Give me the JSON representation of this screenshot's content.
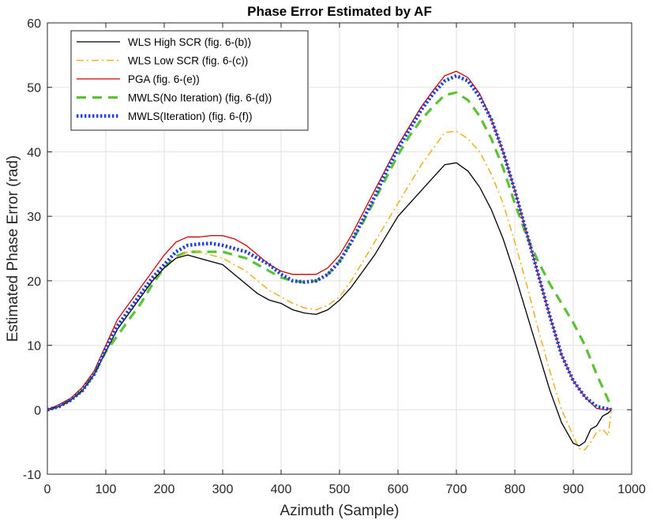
{
  "chart_data": {
    "type": "line",
    "title": "Phase Error Estimated by AF",
    "xlabel": "Azimuth (Sample)",
    "ylabel": "Estimated Phase Error (rad)",
    "xlim": [
      0,
      1000
    ],
    "ylim": [
      -10,
      60
    ],
    "xticks": [
      0,
      100,
      200,
      300,
      400,
      500,
      600,
      700,
      800,
      900,
      1000
    ],
    "yticks": [
      -10,
      0,
      10,
      20,
      30,
      40,
      50,
      60
    ],
    "grid": true,
    "legend_position": "top-left",
    "series": [
      {
        "name": "WLS High SCR (fig. 6-(b))",
        "color": "#000000",
        "style": "solid",
        "x": [
          0,
          20,
          40,
          60,
          80,
          100,
          120,
          140,
          160,
          180,
          200,
          220,
          240,
          260,
          280,
          300,
          320,
          340,
          360,
          380,
          400,
          420,
          440,
          460,
          480,
          500,
          520,
          540,
          560,
          580,
          600,
          620,
          640,
          660,
          680,
          700,
          720,
          740,
          760,
          780,
          800,
          820,
          840,
          860,
          880,
          900,
          910,
          920,
          930,
          940,
          950,
          960,
          965
        ],
        "y": [
          0,
          0.5,
          1.5,
          3,
          5.5,
          9,
          12.5,
          15,
          17.5,
          20,
          22,
          23.5,
          24,
          23.5,
          23,
          22.5,
          21,
          19.5,
          18,
          17,
          16.5,
          15.5,
          15,
          14.8,
          15.5,
          17,
          19,
          21.5,
          24,
          27,
          30,
          32,
          34,
          36,
          38,
          38.3,
          37,
          34.5,
          31,
          26.5,
          21,
          15,
          9,
          3,
          -2,
          -5.2,
          -5.6,
          -5,
          -3,
          -2.5,
          -1,
          -0.5,
          0
        ]
      },
      {
        "name": "WLS Low SCR (fig. 6-(c))",
        "color": "#EDB120",
        "style": "dashdot",
        "x": [
          0,
          20,
          40,
          60,
          80,
          100,
          120,
          140,
          160,
          180,
          200,
          220,
          240,
          260,
          280,
          300,
          320,
          340,
          360,
          380,
          400,
          420,
          440,
          460,
          480,
          500,
          520,
          540,
          560,
          580,
          600,
          620,
          640,
          660,
          680,
          700,
          720,
          740,
          760,
          780,
          800,
          820,
          840,
          860,
          880,
          900,
          910,
          920,
          930,
          940,
          950,
          960,
          965
        ],
        "y": [
          0,
          0.5,
          1.5,
          3,
          5.5,
          9,
          12.5,
          15,
          17.5,
          20,
          22,
          23.5,
          24.5,
          24.5,
          24,
          23.5,
          22.5,
          21.5,
          20,
          18.5,
          17.5,
          16.5,
          15.8,
          15.5,
          16.2,
          17.5,
          20,
          23,
          26,
          29,
          32,
          35,
          38,
          40.5,
          43,
          43.2,
          42,
          40,
          36.5,
          32,
          26,
          19.5,
          12.5,
          6,
          0,
          -4,
          -6,
          -6.2,
          -5,
          -3.5,
          -3,
          -4,
          0
        ]
      },
      {
        "name": "PGA (fig. 6-(e))",
        "color": "#D00000",
        "style": "solid",
        "x": [
          0,
          20,
          40,
          60,
          80,
          100,
          120,
          140,
          160,
          180,
          200,
          220,
          240,
          260,
          280,
          300,
          320,
          340,
          360,
          380,
          400,
          420,
          440,
          460,
          480,
          500,
          520,
          540,
          560,
          580,
          600,
          620,
          640,
          660,
          680,
          700,
          720,
          740,
          760,
          780,
          800,
          820,
          840,
          860,
          880,
          900,
          920,
          940,
          955,
          965
        ],
        "y": [
          0,
          0.8,
          1.8,
          3.5,
          6,
          10,
          14,
          16.5,
          19,
          21.5,
          24,
          26,
          26.8,
          26.8,
          27,
          27,
          26.5,
          25.5,
          24,
          22.5,
          21.5,
          21,
          21,
          21,
          22,
          24,
          27,
          30.5,
          34,
          37.5,
          41,
          44,
          47,
          49.5,
          51.8,
          52.5,
          51.5,
          49,
          45,
          40,
          34,
          27.5,
          21,
          14.5,
          8.5,
          4.5,
          2,
          0.2,
          0,
          0.2
        ]
      },
      {
        "name": "MWLS(No Iteration) (fig. 6-(d))",
        "color": "#5BC236",
        "style": "dashed",
        "x": [
          0,
          20,
          40,
          60,
          80,
          100,
          120,
          140,
          160,
          180,
          200,
          220,
          240,
          260,
          280,
          300,
          320,
          340,
          360,
          380,
          400,
          420,
          440,
          460,
          480,
          500,
          520,
          540,
          560,
          580,
          600,
          620,
          640,
          660,
          680,
          700,
          720,
          740,
          760,
          780,
          800,
          820,
          840,
          860,
          880,
          900,
          920,
          940,
          960,
          965
        ],
        "y": [
          0,
          0.5,
          1.5,
          3,
          5.5,
          9,
          11.5,
          14,
          16.5,
          19.5,
          22,
          23.8,
          24.5,
          24.5,
          24.5,
          24.5,
          24,
          23.5,
          22.5,
          21.5,
          20.5,
          20,
          19.8,
          20,
          21,
          23,
          26,
          29,
          32.5,
          36,
          39.5,
          42.5,
          45,
          47,
          48.8,
          49.2,
          48,
          45.5,
          42,
          37.5,
          32,
          27,
          23,
          19.5,
          16.5,
          13.5,
          10,
          5.5,
          1.5,
          0
        ]
      },
      {
        "name": "MWLS(Iteration) (fig. 6-(f))",
        "color": "#1F3FD8",
        "style": "dotted",
        "x": [
          0,
          20,
          40,
          60,
          80,
          100,
          120,
          140,
          160,
          180,
          200,
          220,
          240,
          260,
          280,
          300,
          320,
          340,
          360,
          380,
          400,
          420,
          440,
          460,
          480,
          500,
          520,
          540,
          560,
          580,
          600,
          620,
          640,
          660,
          680,
          700,
          720,
          740,
          760,
          780,
          800,
          820,
          840,
          860,
          880,
          900,
          920,
          940,
          955,
          965
        ],
        "y": [
          0,
          0.5,
          1.5,
          3,
          5.5,
          9.5,
          13,
          15.5,
          18,
          20.5,
          22.5,
          24.5,
          25.5,
          25.7,
          25.8,
          25.5,
          25,
          24.5,
          23.5,
          22.5,
          21,
          20,
          19.8,
          20,
          21,
          23,
          26,
          29.5,
          33,
          37,
          40.5,
          43.5,
          46.5,
          49,
          51,
          51.8,
          51,
          48.5,
          45,
          40,
          34,
          27.5,
          21,
          14.5,
          8.5,
          4.5,
          2,
          0.5,
          0.2,
          0
        ]
      }
    ]
  }
}
